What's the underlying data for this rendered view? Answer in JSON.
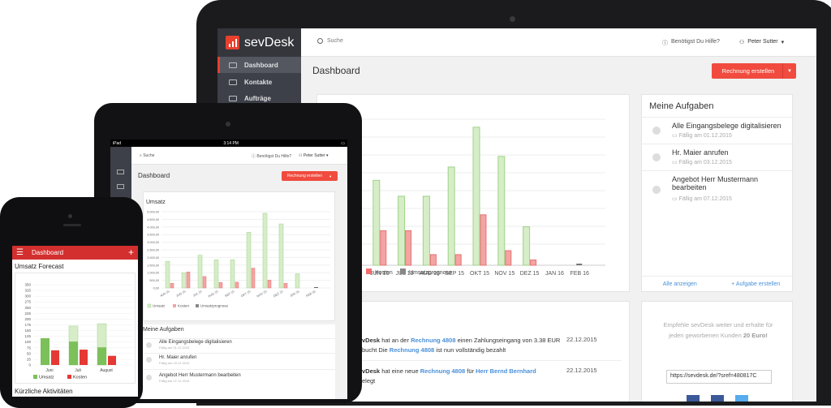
{
  "laptop": {
    "app_name": "sevDesk",
    "search_placeholder": "Suche",
    "help_label": "Benötigst Du Hilfe?",
    "user_name": "Peter Sutter",
    "sidebar": {
      "items": [
        {
          "label": "Dashboard"
        },
        {
          "label": "Kontakte"
        },
        {
          "label": "Aufträge"
        }
      ]
    },
    "page_title": "Dashboard",
    "create_invoice_label": "Rechnung erstellen",
    "chart_legend": {
      "costs": "Kosten",
      "forecast": "Umsatzprognose"
    },
    "tasks": {
      "title": "Meine Aufgaben",
      "items": [
        {
          "title": "Alle Eingangsbelege digitalisieren",
          "due": "Fällig am 01.12.2015"
        },
        {
          "title": "Hr. Maier anrufen",
          "due": "Fällig am 03.12.2015"
        },
        {
          "title": "Angebot Herr Mustermann bearbeiten",
          "due": "Fällig am 07.12.2015"
        }
      ],
      "show_all": "Alle anzeigen",
      "add_task": "+ Aufgabe erstellen"
    },
    "activities": [
      {
        "who": "vDesk",
        "text1": " hat an der ",
        "link1": "Rechnung 4808",
        "text2": " einen Zahlungseingang von 3.38 EUR",
        "text3": "bucht Die ",
        "link2": "Rechnung 4808",
        "text4": " ist nun vollständig bezahlt",
        "date": "22.12.2015"
      },
      {
        "who": "vDesk",
        "text1": " hat eine neue ",
        "link1": "Rechnung 4808",
        "text2": " für ",
        "link2": "Herr Bernd Bernhard",
        "text3": "elegt",
        "date": "22.12.2015"
      }
    ],
    "referral": {
      "text": "Empfehle sevDesk weiter und erhalte für jeden geworbenen Kunden",
      "bonus": "20 Euro!",
      "link": "https://sevdesk.de/?sref=480817C"
    }
  },
  "tablet": {
    "status_left": "iPad",
    "status_time": "3:14 PM",
    "search_placeholder": "Suche",
    "help_label": "Benötigst Du Hilfe?",
    "user_name": "Peter Sutter",
    "page_title": "Dashboard",
    "create_invoice_label": "Rechnung erstellen",
    "chart_title": "Umsatz",
    "legend": {
      "revenue": "Umsatz",
      "costs": "Kosten",
      "forecast": "Umsatzprognose"
    },
    "tasks_title": "Meine Aufgaben",
    "tasks": [
      {
        "title": "Alle Eingangsbelege digitalisieren",
        "due": "Fällig am 01.12.2015"
      },
      {
        "title": "Hr. Maier anrufen",
        "due": "Fällig am 03.12.2015"
      },
      {
        "title": "Angebot Herr Mustermann bearbeiten",
        "due": "Fällig am 07.12.2015"
      }
    ]
  },
  "phone": {
    "title": "Dashboard",
    "forecast_title": "Umsatz Forecast",
    "legend": {
      "revenue": "Umsatz",
      "costs": "Kosten"
    },
    "recent_title": "Kürzliche Aktivitäten"
  },
  "colors": {
    "brand_red": "#e8402d",
    "revenue_green": "#7cc05a",
    "forecast_green": "#d6edc8",
    "cost_red": "#f26e6e",
    "link_blue": "#4a90d9"
  },
  "chart_data": [
    {
      "type": "bar",
      "device": "laptop",
      "categories": [
        "AI 15",
        "JUN 15",
        "JUL 15",
        "AUG 15",
        "SEP 15",
        "OKT 15",
        "NOV 15",
        "DEZ 15",
        "JAN 16",
        "FEB 16"
      ],
      "series": [
        {
          "name": "Umsatz",
          "values": [
            9.5,
            6.4,
            5.2,
            5.2,
            7.4,
            10.4,
            8.2,
            2.9,
            0,
            0
          ]
        },
        {
          "name": "Kosten",
          "values": [
            0.6,
            2.6,
            2.6,
            0.8,
            0.8,
            3.8,
            1.1,
            0.4,
            0,
            0
          ]
        },
        {
          "name": "Umsatzprognose",
          "values": [
            0,
            0,
            0,
            0,
            0,
            0,
            0,
            0,
            0,
            0.1
          ]
        }
      ],
      "legend": [
        "Kosten",
        "Umsatzprognose"
      ]
    },
    {
      "type": "bar",
      "device": "tablet",
      "title": "Umsatz",
      "categories": [
        "MAI 15",
        "JUN 15",
        "JUL 15",
        "AUG 15",
        "SEP 15",
        "OKT 15",
        "NOV 15",
        "DEZ 15",
        "JAN 16",
        "FEB 16"
      ],
      "ytick_labels": [
        "5.000,00",
        "4.500,00",
        "4.000,00",
        "3.500,00",
        "3.000,00",
        "2.500,00",
        "2.000,00",
        "1.500,00",
        "1.000,00",
        "500,00",
        "0,00"
      ],
      "ylim": [
        0,
        5000
      ],
      "series": [
        {
          "name": "Umsatz",
          "values": [
            1750,
            1000,
            2150,
            1850,
            1850,
            3650,
            4900,
            4200,
            930,
            0
          ]
        },
        {
          "name": "Kosten",
          "values": [
            300,
            1050,
            750,
            360,
            380,
            1300,
            520,
            300,
            0,
            0
          ]
        },
        {
          "name": "Umsatzprognose",
          "values": [
            0,
            0,
            0,
            0,
            0,
            0,
            0,
            0,
            0,
            30
          ]
        }
      ]
    },
    {
      "type": "bar",
      "device": "phone",
      "title": "Umsatz Forecast",
      "categories": [
        "Juni",
        "Juli",
        "August"
      ],
      "yticks": [
        0,
        25,
        50,
        75,
        100,
        125,
        150,
        175,
        200,
        225,
        250,
        275,
        300,
        325,
        350
      ],
      "ylim": [
        0,
        350
      ],
      "series": [
        {
          "name": "Umsatz",
          "values": [
            117,
            102,
            77
          ]
        },
        {
          "name": "Kosten",
          "values": [
            64,
            67,
            40
          ]
        },
        {
          "name": "Forecast",
          "values": [
            0,
            170,
            180
          ]
        }
      ]
    }
  ]
}
